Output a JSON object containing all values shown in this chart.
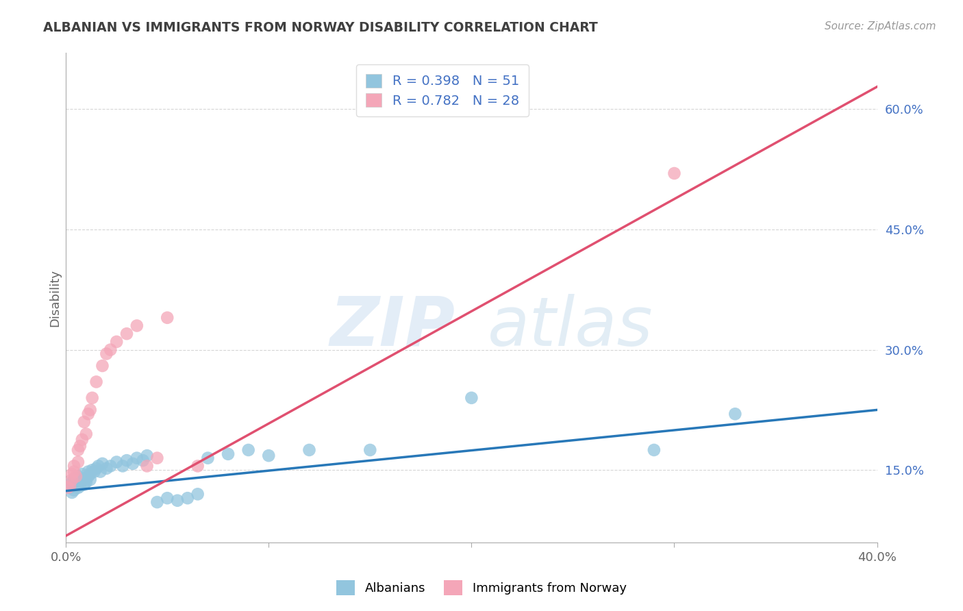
{
  "title": "ALBANIAN VS IMMIGRANTS FROM NORWAY DISABILITY CORRELATION CHART",
  "source": "Source: ZipAtlas.com",
  "ylabel": "Disability",
  "x_min": 0.0,
  "x_max": 0.4,
  "y_min": 0.06,
  "y_max": 0.67,
  "y_ticks_right": [
    0.15,
    0.3,
    0.45,
    0.6
  ],
  "y_tick_labels_right": [
    "15.0%",
    "30.0%",
    "45.0%",
    "60.0%"
  ],
  "blue_color": "#92C5DE",
  "pink_color": "#F4A6B8",
  "blue_line_color": "#2878B8",
  "pink_line_color": "#E05070",
  "blue_R": 0.398,
  "blue_N": 51,
  "pink_R": 0.782,
  "pink_N": 28,
  "legend_label_blue": "Albanians",
  "legend_label_pink": "Immigrants from Norway",
  "watermark_zip": "ZIP",
  "watermark_atlas": "atlas",
  "blue_scatter_x": [
    0.001,
    0.002,
    0.003,
    0.003,
    0.004,
    0.004,
    0.005,
    0.005,
    0.006,
    0.006,
    0.007,
    0.007,
    0.008,
    0.008,
    0.009,
    0.009,
    0.01,
    0.01,
    0.011,
    0.011,
    0.012,
    0.012,
    0.013,
    0.014,
    0.015,
    0.016,
    0.017,
    0.018,
    0.02,
    0.022,
    0.025,
    0.028,
    0.03,
    0.033,
    0.035,
    0.038,
    0.04,
    0.045,
    0.05,
    0.055,
    0.06,
    0.065,
    0.07,
    0.08,
    0.09,
    0.1,
    0.12,
    0.15,
    0.2,
    0.29,
    0.33
  ],
  "blue_scatter_y": [
    0.13,
    0.128,
    0.135,
    0.122,
    0.138,
    0.125,
    0.132,
    0.14,
    0.128,
    0.142,
    0.135,
    0.13,
    0.138,
    0.145,
    0.132,
    0.138,
    0.14,
    0.135,
    0.142,
    0.148,
    0.138,
    0.145,
    0.15,
    0.148,
    0.152,
    0.155,
    0.148,
    0.158,
    0.152,
    0.155,
    0.16,
    0.155,
    0.162,
    0.158,
    0.165,
    0.162,
    0.168,
    0.11,
    0.115,
    0.112,
    0.115,
    0.12,
    0.165,
    0.17,
    0.175,
    0.168,
    0.175,
    0.175,
    0.24,
    0.175,
    0.22
  ],
  "pink_scatter_x": [
    0.001,
    0.002,
    0.003,
    0.003,
    0.004,
    0.004,
    0.005,
    0.006,
    0.006,
    0.007,
    0.008,
    0.009,
    0.01,
    0.011,
    0.012,
    0.013,
    0.015,
    0.018,
    0.02,
    0.022,
    0.025,
    0.03,
    0.035,
    0.04,
    0.045,
    0.05,
    0.065,
    0.3
  ],
  "pink_scatter_y": [
    0.128,
    0.13,
    0.138,
    0.145,
    0.148,
    0.155,
    0.142,
    0.16,
    0.175,
    0.18,
    0.188,
    0.21,
    0.195,
    0.22,
    0.225,
    0.24,
    0.26,
    0.28,
    0.295,
    0.3,
    0.31,
    0.32,
    0.33,
    0.155,
    0.165,
    0.34,
    0.155,
    0.52
  ],
  "blue_trend_x": [
    0.0,
    0.4
  ],
  "blue_trend_y": [
    0.124,
    0.225
  ],
  "pink_trend_x": [
    0.0,
    0.4
  ],
  "pink_trend_y": [
    0.068,
    0.628
  ],
  "background_color": "#FFFFFF",
  "grid_color": "#CCCCCC",
  "text_color": "#4472C4",
  "title_color": "#404040",
  "axis_color": "#AAAAAA"
}
